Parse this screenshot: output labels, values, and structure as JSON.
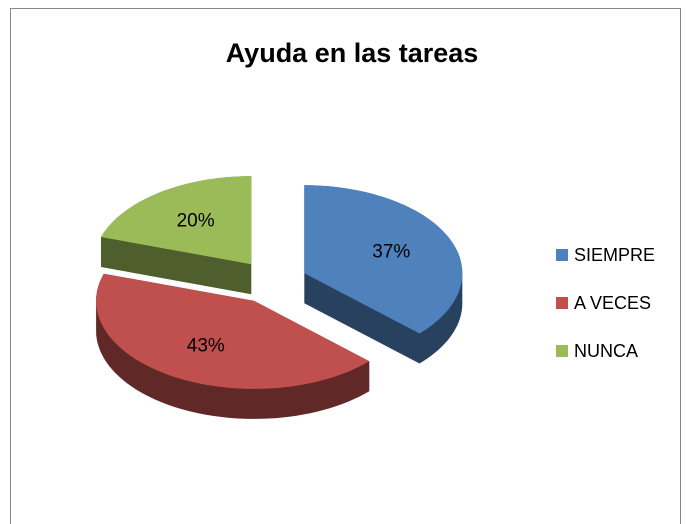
{
  "chart_data": {
    "type": "pie",
    "title": "Ayuda en las tareas",
    "categories": [
      "SIEMPRE",
      "A VECES",
      "NUNCA"
    ],
    "values": [
      37,
      43,
      20
    ],
    "value_labels": [
      "37%",
      "43%",
      "20%"
    ],
    "colors": [
      "#4f81bd",
      "#c0504d",
      "#9bbb59"
    ],
    "legend": "right"
  }
}
